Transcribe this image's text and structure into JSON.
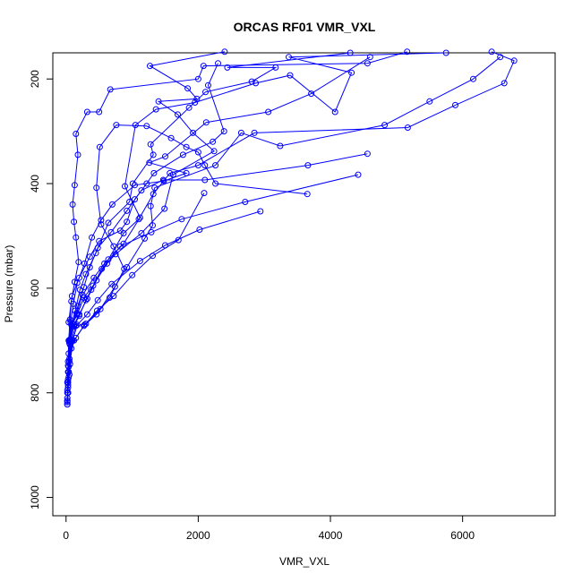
{
  "chart_data": {
    "type": "scatter",
    "title": "ORCAS RF01 VMR_VXL",
    "xlabel": "VMR_VXL",
    "ylabel": "Pressure (mbar)",
    "xlim": [
      -200,
      7400
    ],
    "ylim": [
      1035,
      150
    ],
    "y_reversed": true,
    "x_ticks": [
      0,
      2000,
      4000,
      6000
    ],
    "y_ticks": [
      200,
      400,
      600,
      800,
      1000
    ],
    "grid": false,
    "legend": "none",
    "color": "#0000ff",
    "marker": "open-circle",
    "connected": true,
    "series": [
      {
        "values": [
          [
            2400,
            148
          ],
          [
            1270,
            175
          ],
          [
            1840,
            218
          ],
          [
            1980,
            238
          ],
          [
            1400,
            243
          ],
          [
            1690,
            268
          ],
          [
            1920,
            303
          ],
          [
            2240,
            338
          ],
          [
            1620,
            383
          ],
          [
            1490,
            448
          ],
          [
            1140,
            495
          ],
          [
            750,
            535
          ],
          [
            540,
            563
          ],
          [
            380,
            603
          ],
          [
            300,
            623
          ],
          [
            200,
            653
          ],
          [
            120,
            673
          ],
          [
            60,
            700
          ],
          [
            50,
            735
          ],
          [
            40,
            770
          ],
          [
            30,
            800
          ],
          [
            20,
            822
          ]
        ]
      },
      {
        "values": [
          [
            4300,
            150
          ],
          [
            2440,
            178
          ],
          [
            3170,
            178
          ],
          [
            2810,
            205
          ],
          [
            2110,
            225
          ],
          [
            1860,
            255
          ],
          [
            1280,
            325
          ],
          [
            1320,
            345
          ],
          [
            1010,
            400
          ],
          [
            960,
            435
          ],
          [
            640,
            475
          ],
          [
            450,
            533
          ],
          [
            300,
            573
          ],
          [
            210,
            603
          ],
          [
            140,
            643
          ],
          [
            80,
            670
          ],
          [
            50,
            700
          ],
          [
            40,
            750
          ],
          [
            30,
            800
          ],
          [
            20,
            815
          ]
        ]
      },
      {
        "values": [
          [
            5750,
            150
          ],
          [
            3370,
            158
          ],
          [
            4320,
            188
          ],
          [
            4070,
            263
          ],
          [
            3390,
            193
          ],
          [
            2870,
            208
          ],
          [
            1950,
            245
          ],
          [
            1360,
            258
          ],
          [
            1050,
            288
          ],
          [
            890,
            405
          ],
          [
            1120,
            465
          ],
          [
            870,
            515
          ],
          [
            580,
            553
          ],
          [
            420,
            580
          ],
          [
            250,
            613
          ],
          [
            160,
            648
          ],
          [
            90,
            673
          ],
          [
            50,
            705
          ],
          [
            30,
            760
          ],
          [
            20,
            810
          ]
        ]
      },
      {
        "values": [
          [
            6440,
            148
          ],
          [
            6780,
            165
          ],
          [
            6630,
            208
          ],
          [
            5890,
            250
          ],
          [
            5170,
            293
          ],
          [
            2850,
            303
          ],
          [
            2000,
            365
          ],
          [
            1570,
            380
          ],
          [
            1320,
            420
          ],
          [
            1100,
            468
          ],
          [
            870,
            495
          ],
          [
            640,
            545
          ],
          [
            460,
            585
          ],
          [
            320,
            620
          ],
          [
            200,
            650
          ],
          [
            120,
            670
          ],
          [
            70,
            700
          ],
          [
            40,
            760
          ],
          [
            20,
            818
          ]
        ]
      },
      {
        "values": [
          [
            6570,
            158
          ],
          [
            6160,
            200
          ],
          [
            5500,
            243
          ],
          [
            4820,
            288
          ],
          [
            3240,
            328
          ],
          [
            2650,
            303
          ],
          [
            2260,
            365
          ],
          [
            1340,
            408
          ],
          [
            1280,
            443
          ],
          [
            1310,
            480
          ],
          [
            1190,
            505
          ],
          [
            920,
            560
          ],
          [
            740,
            597
          ],
          [
            520,
            640
          ],
          [
            280,
            670
          ],
          [
            150,
            695
          ],
          [
            80,
            715
          ],
          [
            50,
            765
          ],
          [
            30,
            790
          ],
          [
            20,
            822
          ]
        ]
      },
      {
        "values": [
          [
            5160,
            148
          ],
          [
            4560,
            170
          ],
          [
            2080,
            175
          ],
          [
            2000,
            200
          ],
          [
            670,
            220
          ],
          [
            500,
            263
          ],
          [
            320,
            263
          ],
          [
            150,
            305
          ],
          [
            180,
            345
          ],
          [
            130,
            403
          ],
          [
            100,
            440
          ],
          [
            120,
            473
          ],
          [
            150,
            503
          ],
          [
            190,
            550
          ],
          [
            130,
            588
          ],
          [
            80,
            625
          ],
          [
            60,
            660
          ],
          [
            40,
            700
          ],
          [
            30,
            740
          ],
          [
            20,
            780
          ]
        ]
      },
      {
        "values": [
          [
            4600,
            158
          ],
          [
            3710,
            228
          ],
          [
            3060,
            263
          ],
          [
            2120,
            283
          ],
          [
            1500,
            348
          ],
          [
            1260,
            360
          ],
          [
            1820,
            380
          ],
          [
            1480,
            395
          ],
          [
            1040,
            403
          ],
          [
            700,
            440
          ],
          [
            530,
            470
          ],
          [
            390,
            503
          ],
          [
            280,
            553
          ],
          [
            170,
            590
          ],
          [
            110,
            630
          ],
          [
            70,
            665
          ],
          [
            40,
            725
          ],
          [
            30,
            775
          ],
          [
            20,
            815
          ]
        ]
      },
      {
        "values": [
          [
            4560,
            343
          ],
          [
            3660,
            365
          ],
          [
            2100,
            393
          ],
          [
            1470,
            393
          ],
          [
            1140,
            413
          ],
          [
            920,
            452
          ],
          [
            680,
            493
          ],
          [
            480,
            523
          ],
          [
            360,
            560
          ],
          [
            270,
            598
          ],
          [
            180,
            634
          ],
          [
            100,
            668
          ],
          [
            60,
            708
          ],
          [
            30,
            780
          ]
        ]
      },
      {
        "values": [
          [
            4420,
            383
          ],
          [
            2710,
            435
          ],
          [
            1750,
            468
          ],
          [
            1290,
            493
          ],
          [
            820,
            520
          ],
          [
            620,
            553
          ],
          [
            410,
            595
          ],
          [
            270,
            618
          ],
          [
            170,
            650
          ],
          [
            100,
            668
          ],
          [
            60,
            698
          ],
          [
            30,
            748
          ],
          [
            20,
            795
          ]
        ]
      },
      {
        "values": [
          [
            2940,
            453
          ],
          [
            2020,
            488
          ],
          [
            1500,
            518
          ],
          [
            1120,
            548
          ],
          [
            690,
            592
          ],
          [
            480,
            623
          ],
          [
            320,
            650
          ],
          [
            170,
            670
          ],
          [
            100,
            700
          ],
          [
            60,
            745
          ],
          [
            30,
            785
          ]
        ]
      },
      {
        "values": [
          [
            3650,
            420
          ],
          [
            2260,
            400
          ],
          [
            2100,
            365
          ],
          [
            2000,
            340
          ],
          [
            1820,
            330
          ],
          [
            1590,
            313
          ],
          [
            1220,
            290
          ],
          [
            760,
            288
          ],
          [
            510,
            330
          ],
          [
            460,
            408
          ],
          [
            530,
            478
          ],
          [
            720,
            520
          ],
          [
            880,
            563
          ],
          [
            660,
            618
          ],
          [
            460,
            650
          ],
          [
            270,
            672
          ],
          [
            120,
            700
          ],
          [
            50,
            740
          ],
          [
            20,
            800
          ]
        ]
      },
      {
        "values": [
          [
            2090,
            418
          ],
          [
            1700,
            508
          ],
          [
            1310,
            538
          ],
          [
            1000,
            575
          ],
          [
            720,
            615
          ],
          [
            470,
            643
          ],
          [
            300,
            668
          ],
          [
            150,
            672
          ],
          [
            80,
            700
          ],
          [
            40,
            760
          ]
        ]
      },
      {
        "values": [
          [
            2300,
            170
          ],
          [
            2150,
            212
          ],
          [
            2390,
            300
          ],
          [
            2220,
            320
          ],
          [
            1770,
            345
          ],
          [
            1330,
            380
          ],
          [
            1220,
            400
          ],
          [
            1040,
            430
          ],
          [
            920,
            473
          ],
          [
            820,
            490
          ],
          [
            500,
            510
          ],
          [
            360,
            540
          ],
          [
            200,
            580
          ],
          [
            90,
            615
          ],
          [
            40,
            665
          ]
        ]
      }
    ]
  }
}
